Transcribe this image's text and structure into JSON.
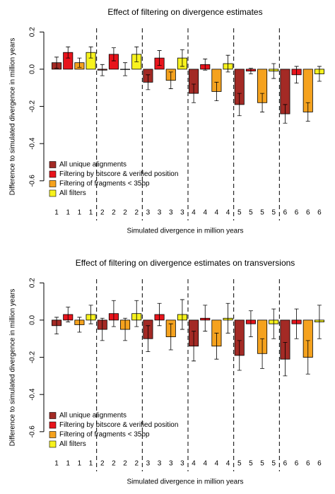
{
  "chart_data": [
    {
      "type": "bar",
      "title": "Effect of filtering on divergence estimates",
      "xlabel": "Simulated divergence in million years",
      "ylabel": "Difference to simulated divergence in million years",
      "categories": [
        "1",
        "2",
        "3",
        "4",
        "5",
        "6"
      ],
      "series": [
        {
          "name": "All unique alignments",
          "color": "#a32a25",
          "values": [
            0.035,
            -0.005,
            -0.07,
            -0.13,
            -0.19,
            -0.24
          ],
          "errors": [
            0.03,
            0.03,
            0.04,
            0.05,
            0.06,
            0.05
          ]
        },
        {
          "name": "Filtering by bitscore & verified position",
          "color": "#e8141c",
          "values": [
            0.09,
            0.08,
            0.06,
            0.025,
            -0.01,
            -0.03
          ],
          "errors": [
            0.03,
            0.035,
            0.04,
            0.03,
            0.015,
            0.045
          ]
        },
        {
          "name": "Filtering of fragments < 35bp",
          "color": "#f5a21e",
          "values": [
            0.035,
            0.0,
            -0.06,
            -0.12,
            -0.18,
            -0.23
          ],
          "errors": [
            0.025,
            0.035,
            0.045,
            0.05,
            0.05,
            0.05
          ]
        },
        {
          "name": "All filters",
          "color": "#f7f21e",
          "values": [
            0.09,
            0.08,
            0.06,
            0.03,
            -0.01,
            -0.025
          ],
          "errors": [
            0.03,
            0.04,
            0.045,
            0.045,
            0.04,
            0.04
          ]
        }
      ],
      "ylim": [
        -0.65,
        0.22
      ],
      "yticks": [
        -0.6,
        -0.4,
        -0.2,
        {
          "value": 0,
          "label": "0.0"
        },
        0.2
      ],
      "legend": "bottom-left"
    },
    {
      "type": "bar",
      "title": "Effect of filtering on divergence estimates on transversions",
      "xlabel": "Simulated divergence in million years",
      "ylabel": "Difference to simulated divergence in million years",
      "categories": [
        "1",
        "2",
        "3",
        "4",
        "5",
        "6"
      ],
      "series": [
        {
          "name": "All unique alignments",
          "color": "#a32a25",
          "values": [
            -0.03,
            -0.05,
            -0.1,
            -0.14,
            -0.19,
            -0.21
          ],
          "errors": [
            0.045,
            0.06,
            0.07,
            0.08,
            0.08,
            0.09
          ]
        },
        {
          "name": "Filtering by bitscore & verified position",
          "color": "#e8141c",
          "values": [
            0.03,
            0.035,
            0.03,
            0.01,
            -0.02,
            -0.02
          ],
          "errors": [
            0.04,
            0.07,
            0.06,
            0.07,
            0.07,
            0.08
          ]
        },
        {
          "name": "Filtering of fragments < 35bp",
          "color": "#f5a21e",
          "values": [
            -0.025,
            -0.05,
            -0.09,
            -0.14,
            -0.18,
            -0.2
          ],
          "errors": [
            0.04,
            0.06,
            0.07,
            0.07,
            0.08,
            0.09
          ]
        },
        {
          "name": "All filters",
          "color": "#f7f21e",
          "values": [
            0.03,
            0.035,
            0.03,
            0.01,
            -0.02,
            -0.01
          ],
          "errors": [
            0.05,
            0.07,
            0.08,
            0.08,
            0.08,
            0.09
          ]
        }
      ],
      "ylim": [
        -0.65,
        0.22
      ],
      "yticks": [
        -0.6,
        -0.4,
        -0.2,
        {
          "value": 0,
          "label": "0.0"
        },
        0.2
      ],
      "legend": "bottom-left"
    }
  ]
}
